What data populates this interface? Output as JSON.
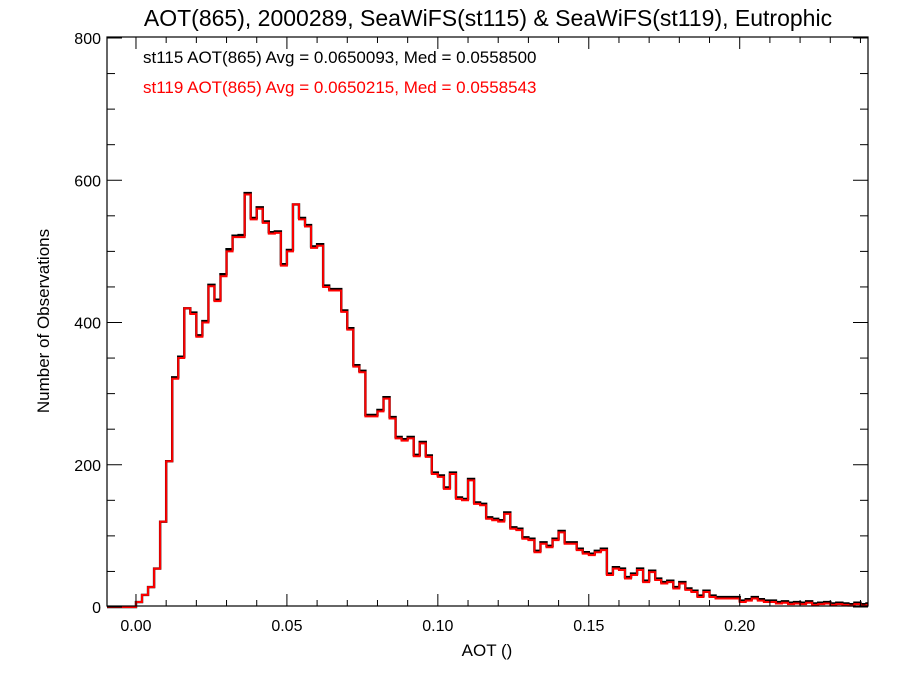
{
  "chart_data": {
    "type": "line",
    "style": "histogram-step",
    "title": "AOT(865), 2000289, SeaWiFS(st115) & SeaWiFS(st119), Eutrophic",
    "xlabel": "AOT ()",
    "ylabel": "Number of Observations",
    "xlim": [
      -0.0096,
      0.2425
    ],
    "ylim": [
      0,
      800
    ],
    "xticks": [
      0.0,
      0.05,
      0.1,
      0.15,
      0.2
    ],
    "xtick_labels": [
      "0.00",
      "0.05",
      "0.10",
      "0.15",
      "0.20"
    ],
    "yticks": [
      0,
      200,
      400,
      600,
      800
    ],
    "ytick_labels": [
      "0",
      "200",
      "400",
      "600",
      "800"
    ],
    "grid": false,
    "legend_position": "top-left",
    "bin_start": 0.0,
    "bin_width": 0.002,
    "series": [
      {
        "name": "st115",
        "label": "st115 AOT(865) Avg = 0.0650093, Med = 0.0558500",
        "color": "#000000",
        "values": [
          7,
          17,
          28,
          54,
          120,
          205,
          323,
          352,
          420,
          414,
          382,
          402,
          453,
          432,
          468,
          503,
          522,
          523,
          582,
          547,
          562,
          542,
          527,
          528,
          482,
          502,
          566,
          547,
          537,
          507,
          510,
          452,
          447,
          447,
          417,
          392,
          340,
          332,
          270,
          270,
          277,
          295,
          267,
          239,
          236,
          239,
          214,
          232,
          213,
          189,
          185,
          168,
          189,
          154,
          152,
          180,
          147,
          145,
          126,
          124,
          122,
          133,
          112,
          110,
          98,
          96,
          79,
          91,
          86,
          96,
          107,
          91,
          91,
          82,
          77,
          75,
          79,
          82,
          47,
          56,
          54,
          42,
          47,
          54,
          37,
          51,
          40,
          35,
          37,
          28,
          35,
          26,
          23,
          16,
          23,
          16,
          14,
          14,
          14,
          14,
          9,
          11,
          14,
          11,
          9,
          9,
          7,
          8,
          6,
          7,
          6,
          8,
          5,
          6,
          7,
          5,
          6,
          5,
          4,
          6,
          4,
          5
        ]
      },
      {
        "name": "st119",
        "label": "st119 AOT(865) Avg = 0.0650215, Med = 0.0558543",
        "color": "#ff0000",
        "values": [
          7,
          17,
          28,
          54,
          120,
          205,
          321,
          350,
          420,
          412,
          380,
          400,
          451,
          430,
          465,
          500,
          520,
          520,
          580,
          545,
          560,
          540,
          525,
          526,
          480,
          500,
          566,
          545,
          535,
          505,
          508,
          450,
          445,
          445,
          415,
          390,
          338,
          330,
          268,
          268,
          275,
          293,
          265,
          237,
          234,
          237,
          212,
          230,
          211,
          187,
          183,
          166,
          187,
          152,
          150,
          178,
          145,
          143,
          124,
          122,
          120,
          131,
          110,
          108,
          96,
          94,
          77,
          89,
          84,
          94,
          105,
          89,
          89,
          80,
          75,
          73,
          77,
          80,
          45,
          54,
          52,
          40,
          45,
          52,
          35,
          49,
          38,
          33,
          35,
          26,
          33,
          24,
          21,
          14,
          21,
          14,
          12,
          12,
          12,
          12,
          7,
          9,
          12,
          9,
          7,
          7,
          5,
          6,
          4,
          5,
          4,
          6,
          3,
          4,
          5,
          3,
          4,
          3,
          2,
          4,
          2,
          3
        ]
      }
    ]
  }
}
